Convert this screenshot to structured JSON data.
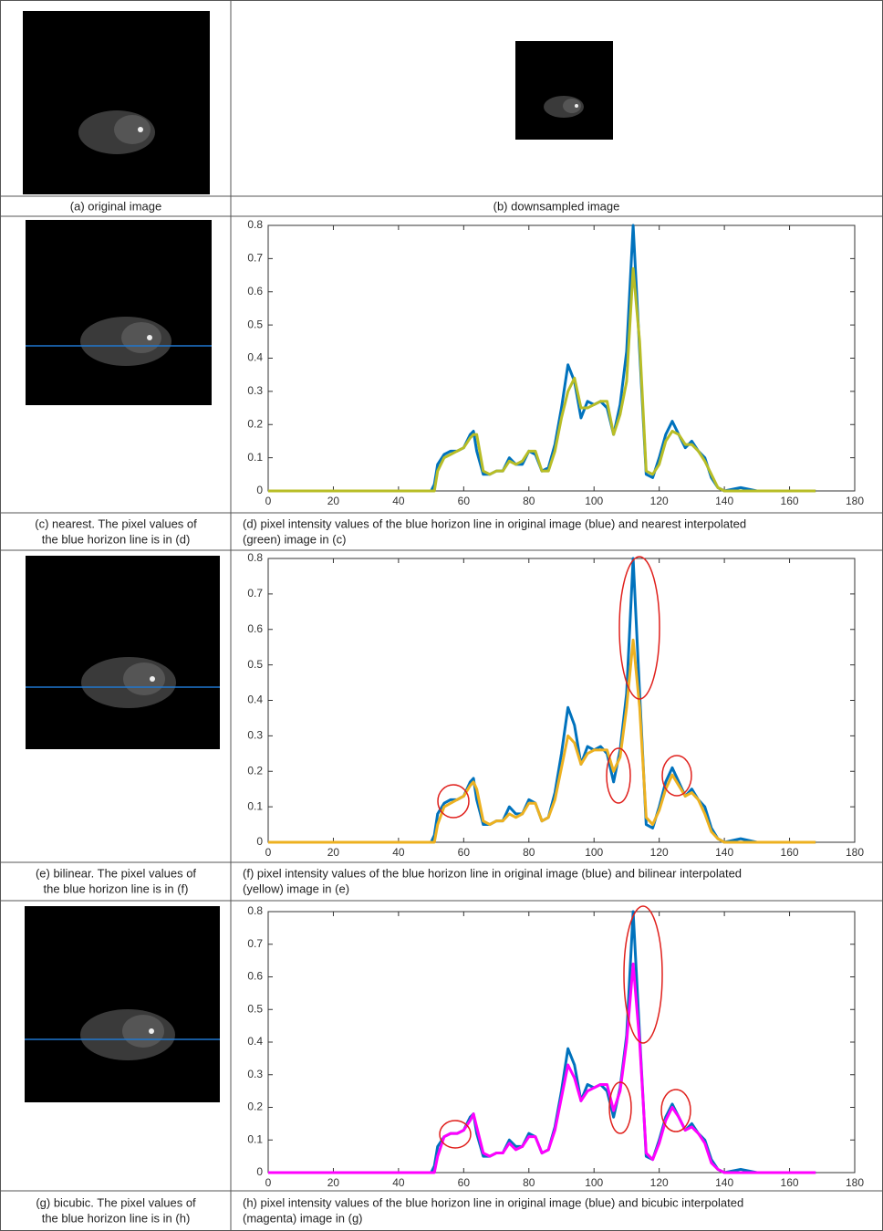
{
  "captions": {
    "a": [
      "(a) original image"
    ],
    "b": [
      "(b) downsampled image"
    ],
    "c": [
      "(c) nearest. The pixel values of",
      "the blue horizon line is in (d)"
    ],
    "d": [
      "(d) pixel intensity values of the blue horizon line in original image  (blue) and nearest interpolated",
      "(green) image in (c)"
    ],
    "e": [
      "(e) bilinear. The pixel values of",
      "the blue horizon line is in (f)"
    ],
    "f": [
      "(f) pixel intensity values of the blue horizon line in original image  (blue) and bilinear interpolated",
      "(yellow) image in (e)"
    ],
    "g": [
      "(g) bicubic. The pixel values of",
      "the blue horizon line is in (h)"
    ],
    "h": [
      "(h) pixel intensity values of the blue horizon line in original image  (blue) and bicubic interpolated",
      "(magenta) image in (g)"
    ]
  },
  "chart_data": [
    {
      "type": "line",
      "xlim": [
        0,
        180
      ],
      "ylim": [
        0,
        0.8
      ],
      "xticks": [
        0,
        20,
        40,
        60,
        80,
        100,
        120,
        140,
        160,
        180
      ],
      "yticks": [
        0,
        0.1,
        0.2,
        0.3,
        0.4,
        0.5,
        0.6,
        0.7,
        0.8
      ],
      "x": [
        0,
        50,
        51,
        52,
        54,
        56,
        58,
        60,
        62,
        63,
        64,
        66,
        68,
        70,
        72,
        74,
        76,
        78,
        80,
        82,
        84,
        86,
        88,
        90,
        92,
        94,
        96,
        98,
        100,
        102,
        104,
        106,
        108,
        110,
        112,
        114,
        116,
        118,
        120,
        122,
        124,
        126,
        128,
        130,
        132,
        134,
        136,
        138,
        140,
        145,
        150,
        168
      ],
      "series": [
        {
          "color": "#0072bd",
          "values": [
            0,
            0,
            0.02,
            0.08,
            0.11,
            0.12,
            0.12,
            0.13,
            0.17,
            0.18,
            0.12,
            0.05,
            0.05,
            0.06,
            0.06,
            0.1,
            0.08,
            0.08,
            0.12,
            0.11,
            0.06,
            0.07,
            0.14,
            0.25,
            0.38,
            0.33,
            0.22,
            0.27,
            0.26,
            0.27,
            0.25,
            0.17,
            0.26,
            0.42,
            0.8,
            0.42,
            0.05,
            0.04,
            0.1,
            0.17,
            0.21,
            0.17,
            0.13,
            0.15,
            0.12,
            0.1,
            0.04,
            0.01,
            0,
            0.01,
            0,
            0
          ]
        },
        {
          "color": "#b8bd26",
          "values": [
            0,
            0,
            0,
            0.06,
            0.1,
            0.11,
            0.12,
            0.13,
            0.16,
            0.17,
            0.17,
            0.06,
            0.05,
            0.06,
            0.06,
            0.09,
            0.08,
            0.09,
            0.12,
            0.12,
            0.06,
            0.06,
            0.12,
            0.22,
            0.3,
            0.34,
            0.25,
            0.25,
            0.26,
            0.27,
            0.27,
            0.17,
            0.23,
            0.33,
            0.67,
            0.45,
            0.06,
            0.05,
            0.08,
            0.15,
            0.18,
            0.17,
            0.14,
            0.14,
            0.12,
            0.09,
            0.05,
            0.01,
            0,
            0,
            0,
            0
          ]
        }
      ]
    },
    {
      "type": "line",
      "xlim": [
        0,
        180
      ],
      "ylim": [
        0,
        0.8
      ],
      "xticks": [
        0,
        20,
        40,
        60,
        80,
        100,
        120,
        140,
        160,
        180
      ],
      "yticks": [
        0,
        0.1,
        0.2,
        0.3,
        0.4,
        0.5,
        0.6,
        0.7,
        0.8
      ],
      "x": [
        0,
        50,
        51,
        52,
        54,
        56,
        58,
        60,
        62,
        63,
        64,
        66,
        68,
        70,
        72,
        74,
        76,
        78,
        80,
        82,
        84,
        86,
        88,
        90,
        92,
        94,
        96,
        98,
        100,
        102,
        104,
        106,
        108,
        110,
        112,
        114,
        116,
        118,
        120,
        122,
        124,
        126,
        128,
        130,
        132,
        134,
        136,
        138,
        140,
        145,
        150,
        168
      ],
      "series": [
        {
          "color": "#0072bd",
          "values": [
            0,
            0,
            0.02,
            0.08,
            0.11,
            0.12,
            0.12,
            0.13,
            0.17,
            0.18,
            0.12,
            0.05,
            0.05,
            0.06,
            0.06,
            0.1,
            0.08,
            0.08,
            0.12,
            0.11,
            0.06,
            0.07,
            0.14,
            0.25,
            0.38,
            0.33,
            0.22,
            0.27,
            0.26,
            0.27,
            0.25,
            0.17,
            0.26,
            0.42,
            0.8,
            0.42,
            0.05,
            0.04,
            0.1,
            0.17,
            0.21,
            0.17,
            0.13,
            0.15,
            0.12,
            0.1,
            0.04,
            0.01,
            0,
            0.01,
            0,
            0
          ]
        },
        {
          "color": "#edb120",
          "values": [
            0,
            0,
            0,
            0.05,
            0.1,
            0.11,
            0.12,
            0.13,
            0.16,
            0.17,
            0.15,
            0.06,
            0.05,
            0.06,
            0.06,
            0.08,
            0.07,
            0.08,
            0.11,
            0.11,
            0.06,
            0.07,
            0.12,
            0.21,
            0.3,
            0.28,
            0.22,
            0.25,
            0.26,
            0.26,
            0.26,
            0.2,
            0.24,
            0.38,
            0.57,
            0.38,
            0.07,
            0.05,
            0.09,
            0.15,
            0.19,
            0.16,
            0.13,
            0.14,
            0.12,
            0.08,
            0.03,
            0.01,
            0,
            0,
            0,
            0
          ]
        }
      ]
    },
    {
      "type": "line",
      "xlim": [
        0,
        180
      ],
      "ylim": [
        0,
        0.8
      ],
      "xticks": [
        0,
        20,
        40,
        60,
        80,
        100,
        120,
        140,
        160,
        180
      ],
      "yticks": [
        0,
        0.1,
        0.2,
        0.3,
        0.4,
        0.5,
        0.6,
        0.7,
        0.8
      ],
      "x": [
        0,
        50,
        51,
        52,
        54,
        56,
        58,
        60,
        62,
        63,
        64,
        66,
        68,
        70,
        72,
        74,
        76,
        78,
        80,
        82,
        84,
        86,
        88,
        90,
        92,
        94,
        96,
        98,
        100,
        102,
        104,
        106,
        108,
        110,
        112,
        114,
        116,
        118,
        120,
        122,
        124,
        126,
        128,
        130,
        132,
        134,
        136,
        138,
        140,
        145,
        150,
        168
      ],
      "series": [
        {
          "color": "#0072bd",
          "values": [
            0,
            0,
            0.02,
            0.08,
            0.11,
            0.12,
            0.12,
            0.13,
            0.17,
            0.18,
            0.12,
            0.05,
            0.05,
            0.06,
            0.06,
            0.1,
            0.08,
            0.08,
            0.12,
            0.11,
            0.06,
            0.07,
            0.14,
            0.25,
            0.38,
            0.33,
            0.22,
            0.27,
            0.26,
            0.27,
            0.25,
            0.17,
            0.26,
            0.42,
            0.8,
            0.42,
            0.05,
            0.04,
            0.1,
            0.17,
            0.21,
            0.17,
            0.13,
            0.15,
            0.12,
            0.1,
            0.04,
            0.01,
            0,
            0.01,
            0,
            0
          ]
        },
        {
          "color": "#ff00ff",
          "values": [
            0,
            0,
            0,
            0.05,
            0.11,
            0.12,
            0.12,
            0.13,
            0.16,
            0.18,
            0.14,
            0.06,
            0.05,
            0.06,
            0.06,
            0.09,
            0.07,
            0.08,
            0.11,
            0.11,
            0.06,
            0.07,
            0.13,
            0.23,
            0.33,
            0.29,
            0.22,
            0.25,
            0.26,
            0.27,
            0.27,
            0.19,
            0.25,
            0.4,
            0.64,
            0.4,
            0.06,
            0.04,
            0.09,
            0.16,
            0.2,
            0.17,
            0.13,
            0.14,
            0.12,
            0.09,
            0.03,
            0.01,
            0,
            0,
            0,
            0
          ]
        }
      ]
    }
  ]
}
